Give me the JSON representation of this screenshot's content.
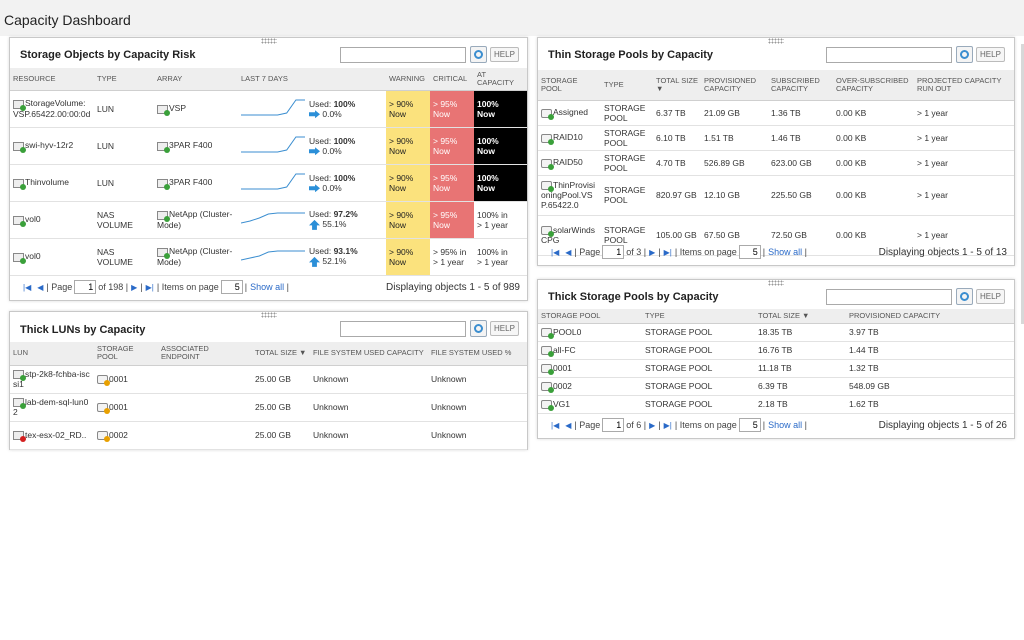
{
  "page": {
    "title": "Capacity Dashboard"
  },
  "search": {
    "help_label": "HELP",
    "placeholder": ""
  },
  "risk_panel": {
    "title": "Storage Objects by Capacity Risk",
    "columns": [
      "RESOURCE",
      "TYPE",
      "ARRAY",
      "LAST 7 DAYS",
      "",
      "WARNING",
      "CRITICAL",
      "AT CAPACITY"
    ],
    "rows": [
      {
        "resource": "StorageVolume:VSP.65422.00:00:0d",
        "type": "LUN",
        "array": "VSP",
        "used_label": "Used:",
        "used": "100%",
        "trend": "0.0%",
        "trend_dir": "flat",
        "spark": [
          0.15,
          0.15,
          0.15,
          0.15,
          0.15,
          0.25,
          0.9,
          0.9
        ],
        "warning": "> 90%\nNow",
        "critical": "> 95%\nNow",
        "atcap": "100%\nNow",
        "warn_style": "warn",
        "crit_style": "crit",
        "cap_style": "atcap"
      },
      {
        "resource": "swi-hyv-12r2",
        "type": "LUN",
        "array": "3PAR F400",
        "used_label": "Used:",
        "used": "100%",
        "trend": "0.0%",
        "trend_dir": "flat",
        "spark": [
          0.15,
          0.15,
          0.15,
          0.15,
          0.15,
          0.25,
          0.9,
          0.9
        ],
        "warning": "> 90%\nNow",
        "critical": "> 95%\nNow",
        "atcap": "100%\nNow",
        "warn_style": "warn",
        "crit_style": "crit",
        "cap_style": "atcap"
      },
      {
        "resource": "Thinvolume",
        "type": "LUN",
        "array": "3PAR F400",
        "used_label": "Used:",
        "used": "100%",
        "trend": "0.0%",
        "trend_dir": "flat",
        "spark": [
          0.15,
          0.15,
          0.15,
          0.15,
          0.15,
          0.25,
          0.9,
          0.9
        ],
        "warning": "> 90%\nNow",
        "critical": "> 95%\nNow",
        "atcap": "100%\nNow",
        "warn_style": "warn",
        "crit_style": "crit",
        "cap_style": "atcap"
      },
      {
        "resource": "vol0",
        "type": "NAS VOLUME",
        "array": "NetApp (Cluster-Mode)",
        "used_label": "Used:",
        "used": "97.2%",
        "trend": "55.1%",
        "trend_dir": "up",
        "spark": [
          0.3,
          0.4,
          0.55,
          0.75,
          0.8,
          0.8,
          0.8,
          0.8
        ],
        "warning": "> 90%\nNow",
        "critical": "> 95%\nNow",
        "atcap": "100% in\n> 1 year",
        "warn_style": "warn",
        "crit_style": "crit",
        "cap_style": ""
      },
      {
        "resource": "vol0",
        "type": "NAS VOLUME",
        "array": "NetApp (Cluster-Mode)",
        "used_label": "Used:",
        "used": "93.1%",
        "trend": "52.1%",
        "trend_dir": "up",
        "spark": [
          0.3,
          0.4,
          0.5,
          0.7,
          0.75,
          0.75,
          0.75,
          0.75
        ],
        "warning": "> 90%\nNow",
        "critical": "> 95% in\n> 1 year",
        "atcap": "100% in\n> 1 year",
        "warn_style": "warn",
        "crit_style": "",
        "cap_style": ""
      }
    ],
    "pager": {
      "page_label": "Page",
      "page": "1",
      "of": "of 198",
      "items_label": "Items on page",
      "items": "5",
      "show_all": "Show all",
      "display": "Displaying objects 1 - 5 of 989"
    }
  },
  "thick_luns_panel": {
    "title": "Thick LUNs by Capacity",
    "columns": [
      "LUN",
      "STORAGE POOL",
      "ASSOCIATED ENDPOINT",
      "TOTAL SIZE ▼",
      "FILE SYSTEM USED CAPACITY",
      "FILE SYSTEM USED %"
    ],
    "rows": [
      {
        "lun": "stp-2k8-fchba-iscsi1",
        "pool": "0001",
        "endpoint": "",
        "size": "25.00 GB",
        "fs_cap": "Unknown",
        "fs_pct": "Unknown",
        "status": "ok"
      },
      {
        "lun": "lab-dem-sql-lun02",
        "pool": "0001",
        "endpoint": "",
        "size": "25.00 GB",
        "fs_cap": "Unknown",
        "fs_pct": "Unknown",
        "status": "ok"
      },
      {
        "lun": "tex-esx-02_RD..",
        "pool": "0002",
        "endpoint": "",
        "size": "25.00 GB",
        "fs_cap": "Unknown",
        "fs_pct": "Unknown",
        "status": "error"
      }
    ]
  },
  "thin_pools_panel": {
    "title": "Thin Storage Pools by Capacity",
    "columns": [
      "STORAGE POOL",
      "TYPE",
      "TOTAL SIZE ▼",
      "PROVISIONED CAPACITY",
      "SUBSCRIBED CAPACITY",
      "OVER-SUBSCRIBED CAPACITY",
      "PROJECTED CAPACITY RUN OUT"
    ],
    "rows": [
      {
        "pool": "Assigned",
        "type": "STORAGE POOL",
        "total": "6.37 TB",
        "prov": "21.09 GB",
        "subs": "1.36 TB",
        "over": "0.00 KB",
        "runout": "> 1 year"
      },
      {
        "pool": "RAID10",
        "type": "STORAGE POOL",
        "total": "6.10 TB",
        "prov": "1.51 TB",
        "subs": "1.46 TB",
        "over": "0.00 KB",
        "runout": "> 1 year"
      },
      {
        "pool": "RAID50",
        "type": "STORAGE POOL",
        "total": "4.70 TB",
        "prov": "526.89 GB",
        "subs": "623.00 GB",
        "over": "0.00 KB",
        "runout": "> 1 year"
      },
      {
        "pool": "ThinProvisioningPool.VSP.65422.0",
        "type": "STORAGE POOL",
        "total": "820.97 GB",
        "prov": "12.10 GB",
        "subs": "225.50 GB",
        "over": "0.00 KB",
        "runout": "> 1 year"
      },
      {
        "pool": "solarWindsCPG",
        "type": "STORAGE POOL",
        "total": "105.00 GB",
        "prov": "67.50 GB",
        "subs": "72.50 GB",
        "over": "0.00 KB",
        "runout": "> 1 year"
      }
    ],
    "pager": {
      "page_label": "Page",
      "page": "1",
      "of": "of 3",
      "items_label": "Items on page",
      "items": "5",
      "show_all": "Show all",
      "display": "Displaying objects 1 - 5 of 13"
    }
  },
  "thick_pools_panel": {
    "title": "Thick Storage Pools by Capacity",
    "columns": [
      "STORAGE POOL",
      "TYPE",
      "TOTAL SIZE ▼",
      "PROVISIONED CAPACITY"
    ],
    "rows": [
      {
        "pool": "POOL0",
        "type": "STORAGE POOL",
        "total": "18.35 TB",
        "prov": "3.97 TB"
      },
      {
        "pool": "all-FC",
        "type": "STORAGE POOL",
        "total": "16.76 TB",
        "prov": "1.44 TB"
      },
      {
        "pool": "0001",
        "type": "STORAGE POOL",
        "total": "11.18 TB",
        "prov": "1.32 TB"
      },
      {
        "pool": "0002",
        "type": "STORAGE POOL",
        "total": "6.39 TB",
        "prov": "548.09 GB"
      },
      {
        "pool": "VG1",
        "type": "STORAGE POOL",
        "total": "2.18 TB",
        "prov": "1.62 TB"
      }
    ],
    "pager": {
      "page_label": "Page",
      "page": "1",
      "of": "of 6",
      "items_label": "Items on page",
      "items": "5",
      "show_all": "Show all",
      "display": "Displaying objects 1 - 5 of 26"
    }
  }
}
